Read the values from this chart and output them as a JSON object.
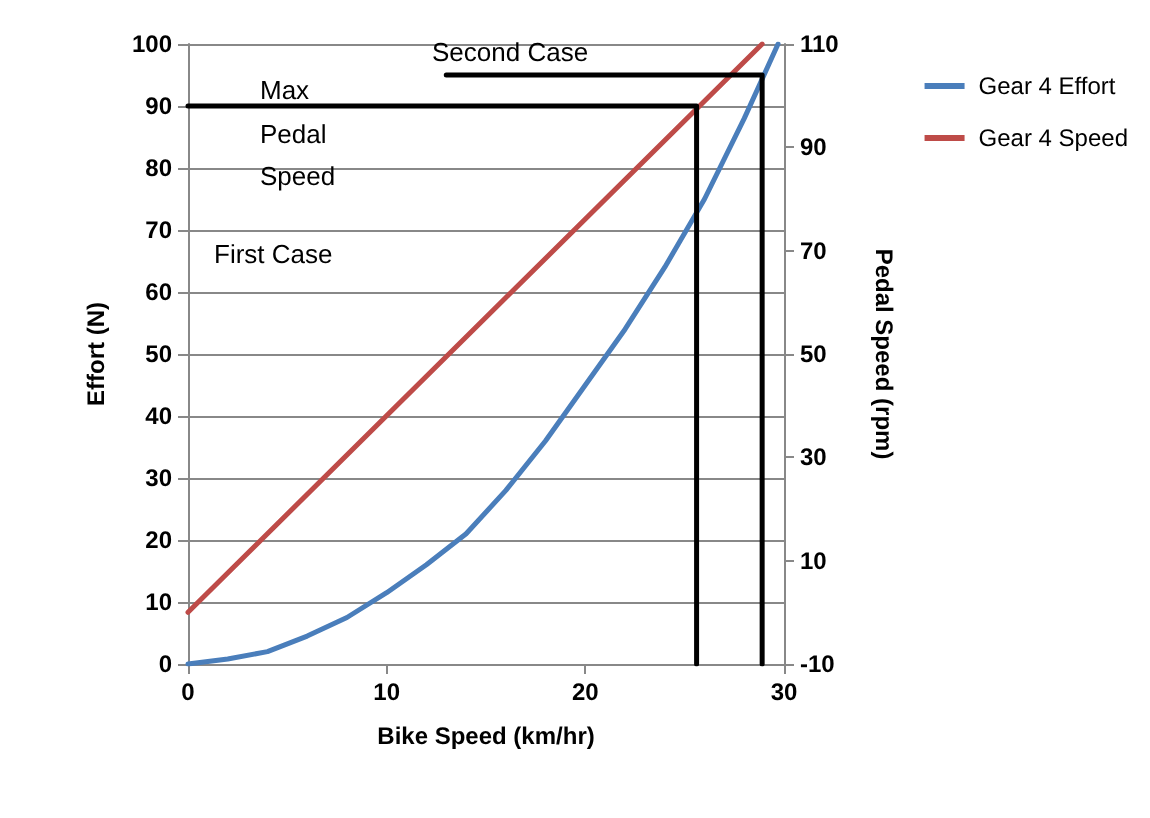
{
  "chart_data": {
    "type": "line",
    "xlabel": "Bike Speed (km/hr)",
    "ylabel": "Effort (N)",
    "y2label": "Pedal Speed (rpm)",
    "xlim": [
      0,
      30
    ],
    "xticks": [
      0,
      10,
      20,
      30
    ],
    "ylim": [
      0,
      100
    ],
    "yticks": [
      0,
      10,
      20,
      30,
      40,
      50,
      60,
      70,
      80,
      90,
      100
    ],
    "y2lim": [
      -10,
      110
    ],
    "y2ticks": [
      -10,
      10,
      30,
      50,
      70,
      90,
      110
    ],
    "grid": "y",
    "legend": "right",
    "marker": "none",
    "line_style": "solid",
    "series": [
      {
        "name": "Gear 4 Effort",
        "color": "#4a7ebb",
        "x": [
          0,
          2,
          4,
          6,
          8,
          10,
          12,
          14,
          16,
          18,
          20,
          22,
          24,
          26,
          28,
          29.7
        ],
        "values": [
          0,
          0.8,
          2,
          4.5,
          7.5,
          11.5,
          16,
          21,
          28,
          36,
          45,
          54,
          64,
          75,
          88,
          100
        ]
      },
      {
        "name": "Gear 4 Speed",
        "color": "#be4b48",
        "axis": "y2",
        "x": [
          0,
          28.9
        ],
        "values": [
          0,
          110
        ]
      },
      {
        "color": "#000000",
        "x": [
          0,
          25.6,
          25.6
        ],
        "values": [
          90,
          90,
          0
        ]
      },
      {
        "color": "#000000",
        "x": [
          13,
          28.9,
          28.9
        ],
        "values": [
          95,
          95,
          0
        ]
      }
    ],
    "annotations": [
      "Max",
      "Pedal",
      "Speed",
      "First Case",
      "Second Case"
    ]
  }
}
